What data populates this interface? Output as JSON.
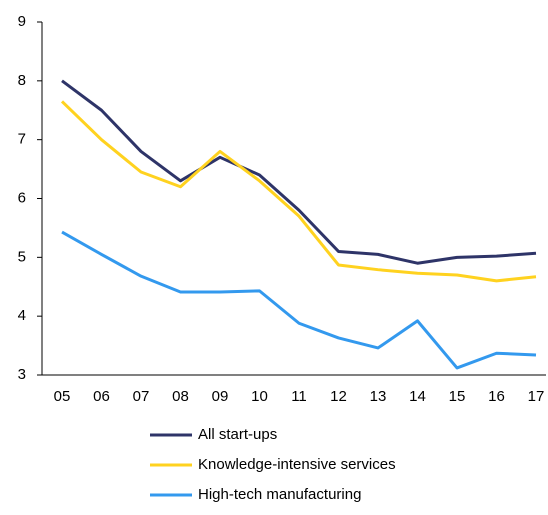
{
  "chart_data": {
    "type": "line",
    "categories": [
      "05",
      "06",
      "07",
      "08",
      "09",
      "10",
      "11",
      "12",
      "13",
      "14",
      "15",
      "16",
      "17"
    ],
    "series": [
      {
        "name": "All start-ups",
        "color": "#2e3468",
        "values": [
          8.0,
          7.5,
          6.8,
          6.3,
          6.7,
          6.4,
          5.8,
          5.1,
          5.05,
          4.9,
          5.0,
          5.02,
          5.07
        ]
      },
      {
        "name": "Knowledge-intensive services",
        "color": "#ffd21f",
        "values": [
          7.65,
          7.0,
          6.45,
          6.2,
          6.8,
          6.3,
          5.7,
          4.87,
          4.79,
          4.73,
          4.7,
          4.6,
          4.67
        ]
      },
      {
        "name": "High-tech manufacturing",
        "color": "#3399ee",
        "values": [
          5.43,
          5.05,
          4.68,
          4.41,
          4.41,
          4.43,
          3.88,
          3.63,
          3.46,
          3.92,
          3.12,
          3.37,
          3.34
        ]
      }
    ],
    "ylim": [
      3,
      9
    ],
    "yticks": [
      3,
      4,
      5,
      6,
      7,
      8,
      9
    ],
    "grid": false
  }
}
